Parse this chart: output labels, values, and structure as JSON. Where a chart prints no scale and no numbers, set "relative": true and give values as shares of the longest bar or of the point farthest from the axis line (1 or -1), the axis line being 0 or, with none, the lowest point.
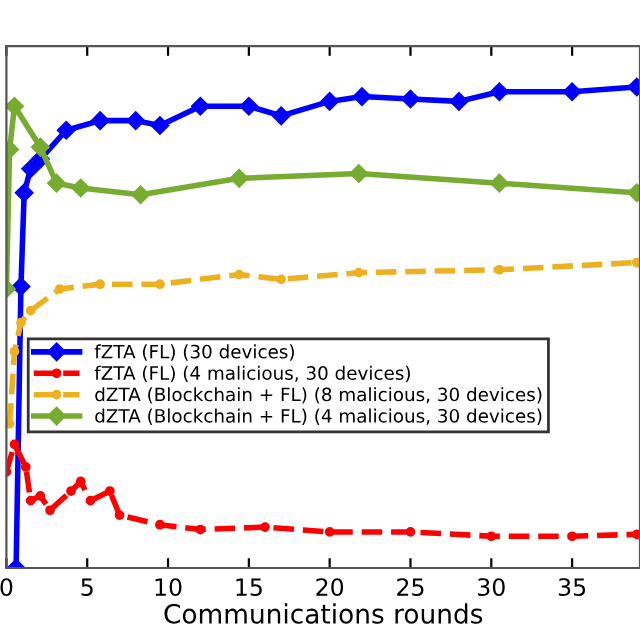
{
  "chart_data": {
    "type": "line",
    "relative": true,
    "xlabel": "Communications rounds",
    "xlim": [
      0,
      39.2
    ],
    "xticks": [
      0,
      5,
      10,
      15,
      20,
      25,
      30,
      35
    ],
    "tick_labels": "x",
    "legend": "center left",
    "grid": false,
    "series": [
      {
        "name": "fZTA (FL) (30 devices)",
        "color": "#0000ff",
        "marker": "diamond",
        "line_style": "solid",
        "x": [
          0.6,
          0.9,
          1.1,
          1.5,
          2.1,
          3.7,
          5.8,
          8,
          9.5,
          12,
          15,
          17,
          20,
          22,
          25,
          28,
          30.5,
          35,
          39
        ],
        "values": [
          0,
          0.585,
          0.78,
          0.83,
          0.85,
          0.91,
          0.93,
          0.93,
          0.92,
          0.96,
          0.96,
          0.94,
          0.97,
          0.98,
          0.975,
          0.97,
          0.99,
          0.99,
          1.0
        ]
      },
      {
        "name": "fZTA (FL) (4 malicious, 30 devices)",
        "color": "#ff0000",
        "marker": "circle",
        "line_style": "dashed",
        "x": [
          0,
          0.5,
          1.2,
          1.5,
          2.1,
          2.7,
          4,
          4.6,
          5.2,
          6.4,
          7,
          9.5,
          12,
          16,
          20,
          25,
          30,
          35,
          39
        ],
        "values": [
          0.2,
          0.257,
          0.21,
          0.14,
          0.15,
          0.12,
          0.16,
          0.18,
          0.14,
          0.16,
          0.11,
          0.09,
          0.08,
          0.085,
          0.075,
          0.075,
          0.066,
          0.066,
          0.07
        ]
      },
      {
        "name": "dZTA (Blockchain + FL) (8 malicious, 30 devices)",
        "color": "#edb120",
        "marker": "circle",
        "line_style": "dashed",
        "x": [
          0.2,
          0.5,
          0.9,
          1.5,
          3.3,
          5.8,
          9.5,
          14.4,
          17,
          21.8,
          30.5,
          39
        ],
        "values": [
          0.3,
          0.45,
          0.51,
          0.535,
          0.58,
          0.59,
          0.59,
          0.61,
          0.6,
          0.614,
          0.62,
          0.635
        ]
      },
      {
        "name": "dZTA (Blockchain + FL) (4 malicious, 30 devices)",
        "color": "#77ac30",
        "marker": "diamond",
        "line_style": "solid",
        "x": [
          0,
          0.2,
          0.5,
          2.1,
          3.1,
          4.6,
          8.3,
          14.4,
          21.8,
          30.5,
          39
        ],
        "values": [
          0.58,
          0.87,
          0.96,
          0.875,
          0.8,
          0.79,
          0.776,
          0.81,
          0.82,
          0.8,
          0.78
        ]
      }
    ]
  }
}
